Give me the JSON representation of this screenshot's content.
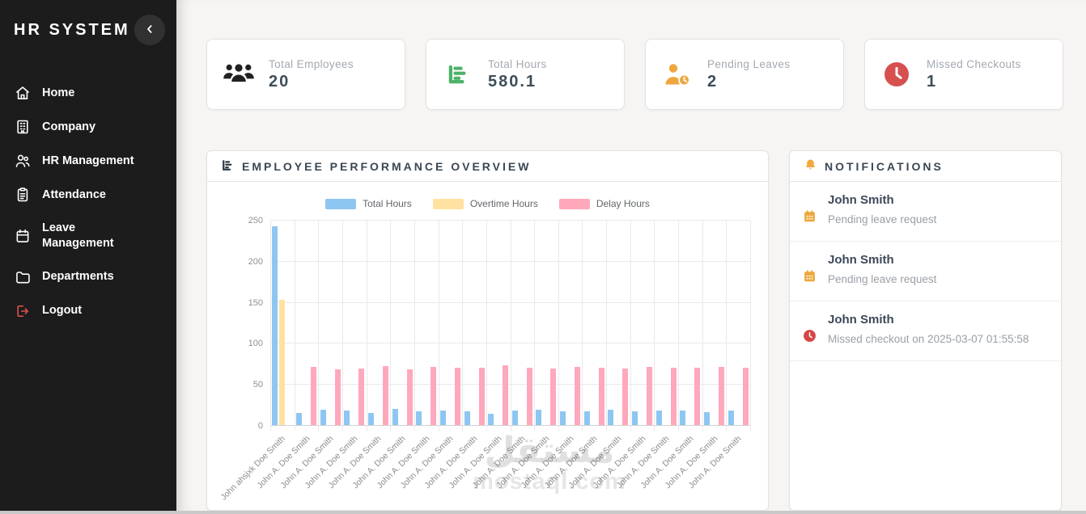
{
  "app": {
    "title": "HR SYSTEM"
  },
  "sidebar": {
    "collapse_icon": "chevron-left-icon",
    "items": [
      {
        "label": "Home",
        "icon": "home-icon"
      },
      {
        "label": "Company",
        "icon": "building-icon"
      },
      {
        "label": "HR Management",
        "icon": "users-icon"
      },
      {
        "label": "Attendance",
        "icon": "clipboard-icon"
      },
      {
        "label": "Leave Management",
        "icon": "calendar-icon"
      },
      {
        "label": "Departments",
        "icon": "folder-icon"
      },
      {
        "label": "Logout",
        "icon": "logout-icon",
        "accent": "#e0524e"
      }
    ]
  },
  "stats": [
    {
      "label": "Total Employees",
      "value": "20",
      "icon": "people-icon",
      "color": "#212121"
    },
    {
      "label": "Total Hours",
      "value": "580.1",
      "icon": "bar-chart-icon",
      "color": "#4cb269"
    },
    {
      "label": "Pending Leaves",
      "value": "2",
      "icon": "person-clock-icon",
      "color": "#f0a63f"
    },
    {
      "label": "Missed Checkouts",
      "value": "1",
      "icon": "clock-icon",
      "color": "#d65050"
    }
  ],
  "chart_panel": {
    "title": "EMPLOYEE PERFORMANCE OVERVIEW",
    "icon": "bar-chart-icon"
  },
  "chart_data": {
    "type": "bar",
    "title": "EMPLOYEE PERFORMANCE OVERVIEW",
    "categories": [
      "John ahsjxk Doe Smith",
      "John A. Doe Smith",
      "John A. Doe Smith",
      "John A. Doe Smith",
      "John A. Doe Smith",
      "John A. Doe Smith",
      "John A. Doe Smith",
      "John A. Doe Smith",
      "John A. Doe Smith",
      "John A. Doe Smith",
      "John A. Doe Smith",
      "John A. Doe Smith",
      "John A. Doe Smith",
      "John A. Doe Smith",
      "John A. Doe Smith",
      "John A. Doe Smith",
      "John A. Doe Smith",
      "John A. Doe Smith",
      "John A. Doe Smith",
      "John A. Doe Smith"
    ],
    "series": [
      {
        "name": "Total Hours",
        "color": "#8ec6f2",
        "values": [
          242,
          15,
          19,
          18,
          15,
          20,
          17,
          18,
          17,
          14,
          18,
          19,
          17,
          17,
          19,
          17,
          18,
          18,
          16,
          18
        ]
      },
      {
        "name": "Overtime Hours",
        "color": "#ffe2a1",
        "values": [
          153,
          0,
          0,
          0,
          0,
          0,
          0,
          0,
          0,
          0,
          0,
          0,
          0,
          0,
          0,
          0,
          0,
          0,
          0,
          0
        ]
      },
      {
        "name": "Delay Hours",
        "color": "#ffa8bc",
        "values": [
          0,
          71,
          68,
          69,
          72,
          68,
          71,
          70,
          70,
          73,
          70,
          69,
          71,
          70,
          69,
          71,
          70,
          70,
          71,
          70
        ]
      }
    ],
    "xlabel": "",
    "ylabel": "",
    "ylim": [
      0,
      250
    ],
    "yticks": [
      0,
      50,
      100,
      150,
      200,
      250
    ],
    "grid": true,
    "legend_position": "top"
  },
  "notifications": {
    "title": "NOTIFICATIONS",
    "icon": "bell-icon",
    "items": [
      {
        "name": "John Smith",
        "detail": "Pending leave request",
        "icon": "calendar-icon"
      },
      {
        "name": "John Smith",
        "detail": "Pending leave request",
        "icon": "calendar-icon"
      },
      {
        "name": "John Smith",
        "detail": "Missed checkout on 2025-03-07 01:55:58",
        "icon": "clock-icon"
      }
    ]
  },
  "watermark": {
    "text_arabic": "مستقل",
    "text_latin": "mostaql.com"
  }
}
